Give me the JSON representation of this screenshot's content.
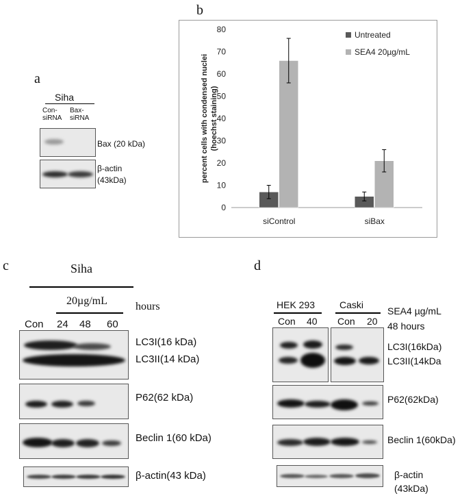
{
  "panels": {
    "a": {
      "letter": "a",
      "cell_line": "Siha",
      "lane1_line1": "Con-",
      "lane1_line2": "siRNA",
      "lane2_line1": "Bax-",
      "lane2_line2": "siRNA",
      "label_bax": "Bax (20 kDa)",
      "label_actin_line1": "β-actin",
      "label_actin_line2": "(43kDa)"
    },
    "b": {
      "letter": "b"
    },
    "c": {
      "letter": "c",
      "cell_line": "Siha",
      "dose": "20µg/mL",
      "hours_label": "hours",
      "lanes": [
        "Con",
        "24",
        "48",
        "60"
      ],
      "label_lc3i": "LC3I(16 kDa)",
      "label_lc3ii": "LC3II(14 kDa)",
      "label_p62": "P62(62 kDa)",
      "label_beclin": "Beclin 1(60 kDa)",
      "label_actin": "β-actin(43 kDa)"
    },
    "d": {
      "letter": "d",
      "group1": "HEK 293",
      "group2": "Caski",
      "lanes": [
        "Con",
        "40",
        "Con",
        "20"
      ],
      "treatment_line1": "SEA4 µg/mL",
      "treatment_line2": "48 hours",
      "label_lc3i": "LC3I(16kDa)",
      "label_lc3ii": "LC3II(14kDa",
      "label_p62": "P62(62kDa)",
      "label_beclin": "Beclin 1(60kDa)",
      "label_actin_line1": "β-actin",
      "label_actin_line2": "(43kDa)"
    }
  },
  "chart_data": {
    "type": "bar",
    "categories": [
      "siControl",
      "siBax"
    ],
    "ylabel_line1": "percent cells with condensed nuclei",
    "ylabel_line2": "(hoechst staining)",
    "ylim": [
      0,
      80
    ],
    "yticks": [
      "0",
      "10",
      "20",
      "30",
      "40",
      "50",
      "60",
      "70",
      "80"
    ],
    "legend_position": "top-right",
    "series": [
      {
        "name": "Untreated",
        "color": "#595959",
        "values": [
          7,
          5
        ],
        "errors": [
          3,
          2
        ]
      },
      {
        "name": "SEA4 20µg/mL",
        "color": "#b3b3b3",
        "values": [
          66,
          21
        ],
        "errors": [
          10,
          5
        ]
      }
    ]
  }
}
